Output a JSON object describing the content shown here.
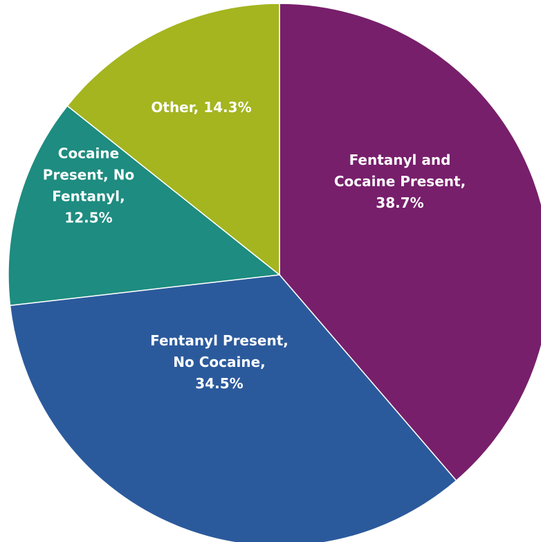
{
  "chart_data": {
    "type": "pie",
    "slices": [
      {
        "name": "Fentanyl and Cocaine Present",
        "value": 38.7,
        "color": "#771f6b",
        "label_lines": [
          "Fentanyl and",
          "Cocaine Present,",
          "38.7%"
        ]
      },
      {
        "name": "Fentanyl Present, No Cocaine",
        "value": 34.5,
        "color": "#2b5a9c",
        "label_lines": [
          "Fentanyl Present,",
          "No Cocaine,",
          "34.5%"
        ]
      },
      {
        "name": "Cocaine Present, No Fentanyl",
        "value": 12.5,
        "color": "#1e8c80",
        "label_lines": [
          "Cocaine",
          "Present, No",
          "Fentanyl,",
          "12.5%"
        ]
      },
      {
        "name": "Other",
        "value": 14.3,
        "color": "#a4b51f",
        "label_lines": [
          "Other, 14.3%"
        ]
      }
    ],
    "start_angle": "12 o'clock",
    "direction": "clockwise",
    "legend": "none",
    "title": ""
  }
}
